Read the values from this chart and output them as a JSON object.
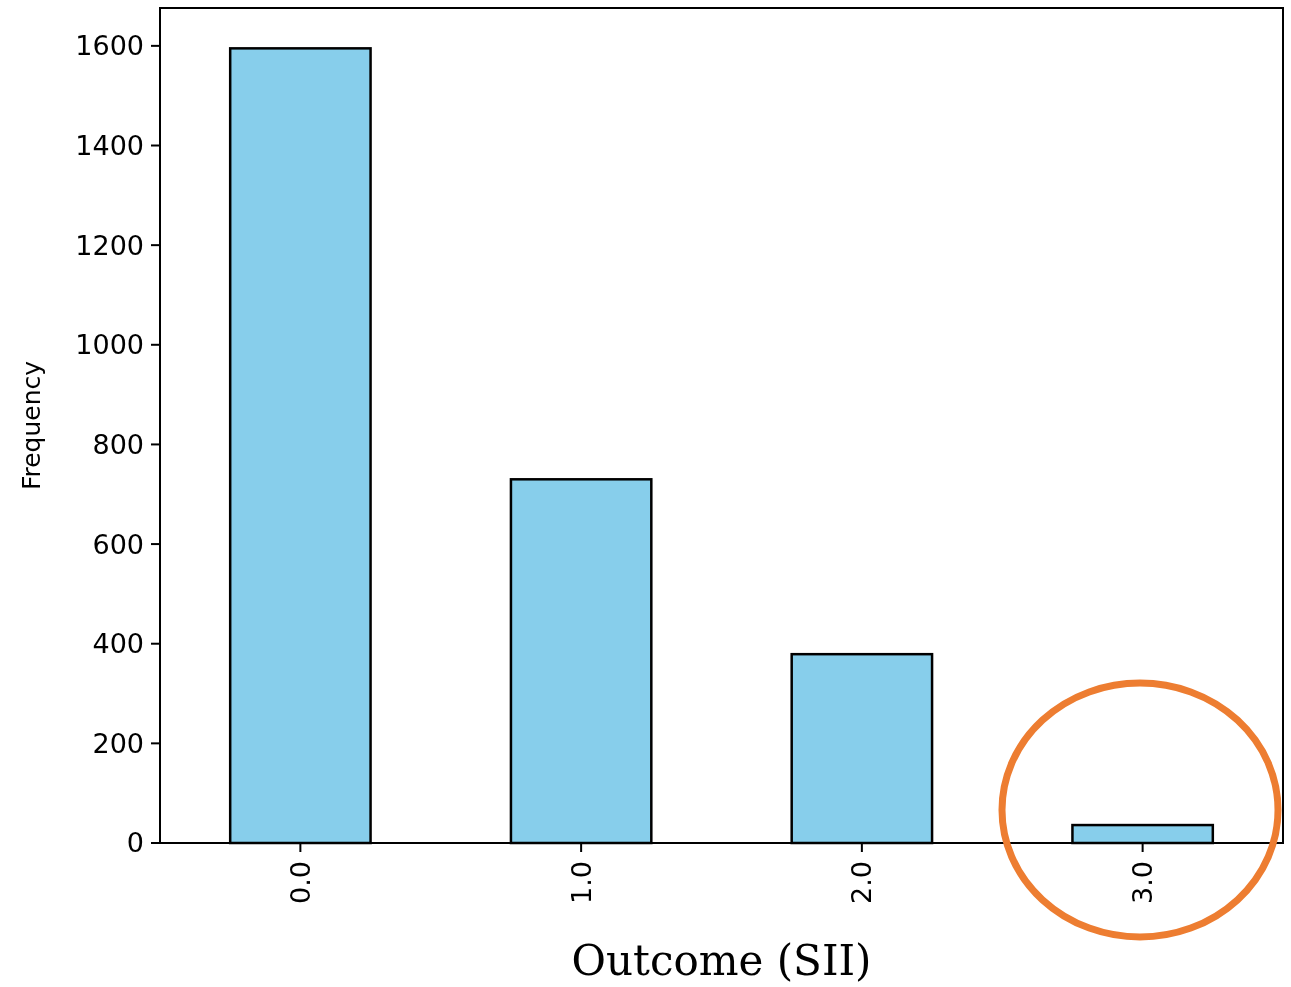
{
  "chart_data": {
    "type": "bar",
    "xlabel": "Outcome (SII)",
    "ylabel": "Frequency",
    "categories": [
      "0.0",
      "1.0",
      "2.0",
      "3.0"
    ],
    "values": [
      1595,
      730,
      379,
      36
    ],
    "color": "#87ceeb",
    "ylim": [
      0,
      1676
    ],
    "yticks": [
      0,
      200,
      400,
      600,
      800,
      1000,
      1200,
      1400,
      1600
    ],
    "grid": false
  }
}
